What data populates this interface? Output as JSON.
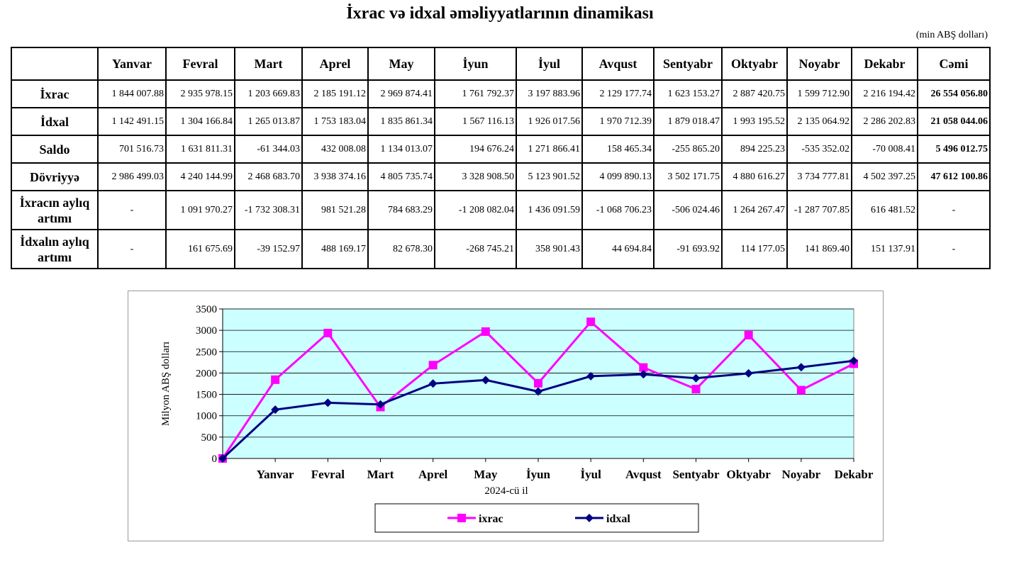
{
  "title": "İxrac və idxal əməliyyatlarının dinamikası",
  "unit": "(min ABŞ dolları)",
  "table": {
    "headers": [
      "",
      "Yanvar",
      "Fevral",
      "Mart",
      "Aprel",
      "May",
      "İyun",
      "İyul",
      "Avqust",
      "Sentyabr",
      "Oktyabr",
      "Noyabr",
      "Dekabr",
      "Cəmi"
    ],
    "rows": [
      {
        "label": "İxrac",
        "values": [
          "1 844 007.88",
          "2 935 978.15",
          "1 203 669.83",
          "2 185 191.12",
          "2 969 874.41",
          "1 761 792.37",
          "3 197 883.96",
          "2 129 177.74",
          "1 623 153.27",
          "2 887 420.75",
          "1 599 712.90",
          "2 216 194.42"
        ],
        "total": "26 554 056.80"
      },
      {
        "label": "İdxal",
        "values": [
          "1 142 491.15",
          "1 304 166.84",
          "1 265 013.87",
          "1 753 183.04",
          "1 835 861.34",
          "1 567 116.13",
          "1 926 017.56",
          "1 970 712.39",
          "1 879 018.47",
          "1 993 195.52",
          "2 135 064.92",
          "2 286 202.83"
        ],
        "total": "21 058 044.06"
      },
      {
        "label": "Saldo",
        "values": [
          "701 516.73",
          "1 631 811.31",
          "-61 344.03",
          "432 008.08",
          "1 134 013.07",
          "194 676.24",
          "1 271 866.41",
          "158 465.34",
          "-255 865.20",
          "894 225.23",
          "-535 352.02",
          "-70 008.41"
        ],
        "total": "5 496 012.75"
      },
      {
        "label": "Dövriyyə",
        "values": [
          "2 986 499.03",
          "4 240 144.99",
          "2 468 683.70",
          "3 938 374.16",
          "4 805 735.74",
          "3 328 908.50",
          "5 123 901.52",
          "4 099 890.13",
          "3 502 171.75",
          "4 880 616.27",
          "3 734 777.81",
          "4 502 397.25"
        ],
        "total": "47 612 100.86"
      },
      {
        "label": "İxracın aylıq artımı",
        "values": [
          "-",
          "1 091 970.27",
          "-1 732 308.31",
          "981 521.28",
          "784 683.29",
          "-1 208 082.04",
          "1 436 091.59",
          "-1 068 706.23",
          "-506 024.46",
          "1 264 267.47",
          "-1 287 707.85",
          "616 481.52"
        ],
        "total": "-"
      },
      {
        "label": "İdxalın aylıq artımı",
        "values": [
          "-",
          "161 675.69",
          "-39 152.97",
          "488 169.17",
          "82 678.30",
          "-268 745.21",
          "358 901.43",
          "44 694.84",
          "-91 693.92",
          "114 177.05",
          "141 869.40",
          "151 137.91"
        ],
        "total": "-"
      }
    ]
  },
  "chart_data": {
    "type": "line",
    "ylabel": "Milyon ABŞ dolları",
    "xlabel": "2024-cü il",
    "categories": [
      "",
      "Yanvar",
      "Fevral",
      "Mart",
      "Aprel",
      "May",
      "İyun",
      "İyul",
      "Avqust",
      "Sentyabr",
      "Oktyabr",
      "Noyabr",
      "Dekabr"
    ],
    "ylim": [
      0,
      3500
    ],
    "yticks": [
      0,
      500,
      1000,
      1500,
      2000,
      2500,
      3000,
      3500
    ],
    "grid": true,
    "legend_position": "bottom",
    "series": [
      {
        "name": "ixrac",
        "color": "#FF00FF",
        "marker": "square",
        "values": [
          0,
          1844.0,
          2936.0,
          1203.7,
          2185.2,
          2969.9,
          1761.8,
          3197.9,
          2129.2,
          1623.2,
          2887.4,
          1599.7,
          2216.2
        ]
      },
      {
        "name": "idxal",
        "color": "#000080",
        "marker": "diamond",
        "values": [
          0,
          1142.5,
          1304.2,
          1265.0,
          1753.2,
          1835.9,
          1567.1,
          1926.0,
          1970.7,
          1879.0,
          1993.2,
          2135.1,
          2286.2
        ]
      }
    ],
    "plot_background": "#CCFFFF"
  }
}
